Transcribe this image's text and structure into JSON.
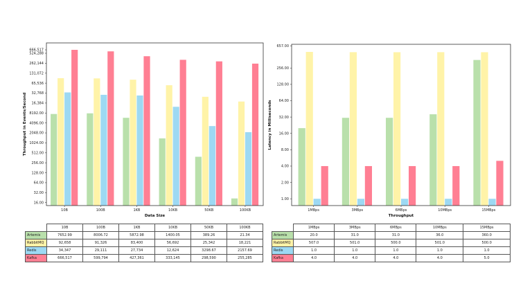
{
  "colors": {
    "Artemis": "#b9e0ab",
    "RabbitMQ": "#fff3a8",
    "Redis": "#9dd9f3",
    "Kafka": "#ff7f93"
  },
  "chart_data": [
    {
      "type": "bar",
      "xlabel": "Data Size",
      "ylabel": "Throughput in Events/Second",
      "yscale": "log2",
      "ylim": [
        13,
        1080000
      ],
      "yticks": [
        16,
        32,
        64,
        128,
        256,
        512,
        1024,
        2048,
        4096,
        8192,
        16384,
        32768,
        65536,
        131072,
        262144,
        524288,
        666517
      ],
      "ytick_labels": [
        "16.00",
        "32.00",
        "64.00",
        "128.00",
        "256.00",
        "512.00",
        "1024.00",
        "2048.00",
        "4096.00",
        "8192.00",
        "16,384",
        "32,768",
        "65,536",
        "131,072",
        "262,144",
        "524,288",
        "666,517"
      ],
      "categories": [
        "10B",
        "100B",
        "1KB",
        "10KB",
        "50KB",
        "100KB"
      ],
      "series": [
        {
          "name": "Artemis",
          "values": [
            7652.99,
            8006.72,
            5872.98,
            1400.05,
            389.26,
            21.34
          ],
          "labels": [
            "7652.99",
            "8006.72",
            "5872.98",
            "1400.05",
            "389.26",
            "21.34"
          ]
        },
        {
          "name": "RabbitMQ",
          "values": [
            92658,
            91326,
            83400,
            56692,
            25342,
            18221
          ],
          "labels": [
            "92,658",
            "91,326",
            "83,400",
            "56,692",
            "25,342",
            "18,221"
          ]
        },
        {
          "name": "Redis",
          "values": [
            34347,
            29111,
            27734,
            12624,
            3298.67,
            2157.69
          ],
          "labels": [
            "34,347",
            "29,111",
            "27,734",
            "12,624",
            "3298.67",
            "2157.69"
          ]
        },
        {
          "name": "Kafka",
          "values": [
            666517,
            599794,
            427361,
            333145,
            298590,
            255285
          ],
          "labels": [
            "666,517",
            "599,794",
            "427,361",
            "333,145",
            "298,590",
            "255,285"
          ]
        }
      ]
    },
    {
      "type": "bar",
      "xlabel": "Throughput",
      "ylabel": "Latency in Milliseconds",
      "yscale": "log2",
      "ylim": [
        0.75,
        700
      ],
      "yticks": [
        1,
        2,
        4,
        8,
        16,
        32,
        64,
        128,
        256,
        657
      ],
      "ytick_labels": [
        "1.00",
        "2.00",
        "4.00",
        "8.00",
        "16.00",
        "32.00",
        "64.00",
        "128.00",
        "256.00",
        "657.00"
      ],
      "categories": [
        "1MBps",
        "3MBps",
        "6MBps",
        "10MBps",
        "15MBps"
      ],
      "series": [
        {
          "name": "Artemis",
          "values": [
            20,
            31,
            31,
            36,
            360
          ],
          "labels": [
            "20.0",
            "31.0",
            "31.0",
            "36.0",
            "360.0"
          ]
        },
        {
          "name": "RabbitMQ",
          "values": [
            507,
            501,
            500,
            501,
            500
          ],
          "labels": [
            "507.0",
            "501.0",
            "500.0",
            "501.0",
            "500.0"
          ]
        },
        {
          "name": "Redis",
          "values": [
            1,
            1,
            1,
            1,
            1
          ],
          "labels": [
            "1.0",
            "1.0",
            "1.0",
            "1.0",
            "1.0"
          ]
        },
        {
          "name": "Kafka",
          "values": [
            4,
            4,
            4,
            4,
            5
          ],
          "labels": [
            "4.0",
            "4.0",
            "4.0",
            "4.0",
            "5.0"
          ]
        }
      ]
    }
  ]
}
